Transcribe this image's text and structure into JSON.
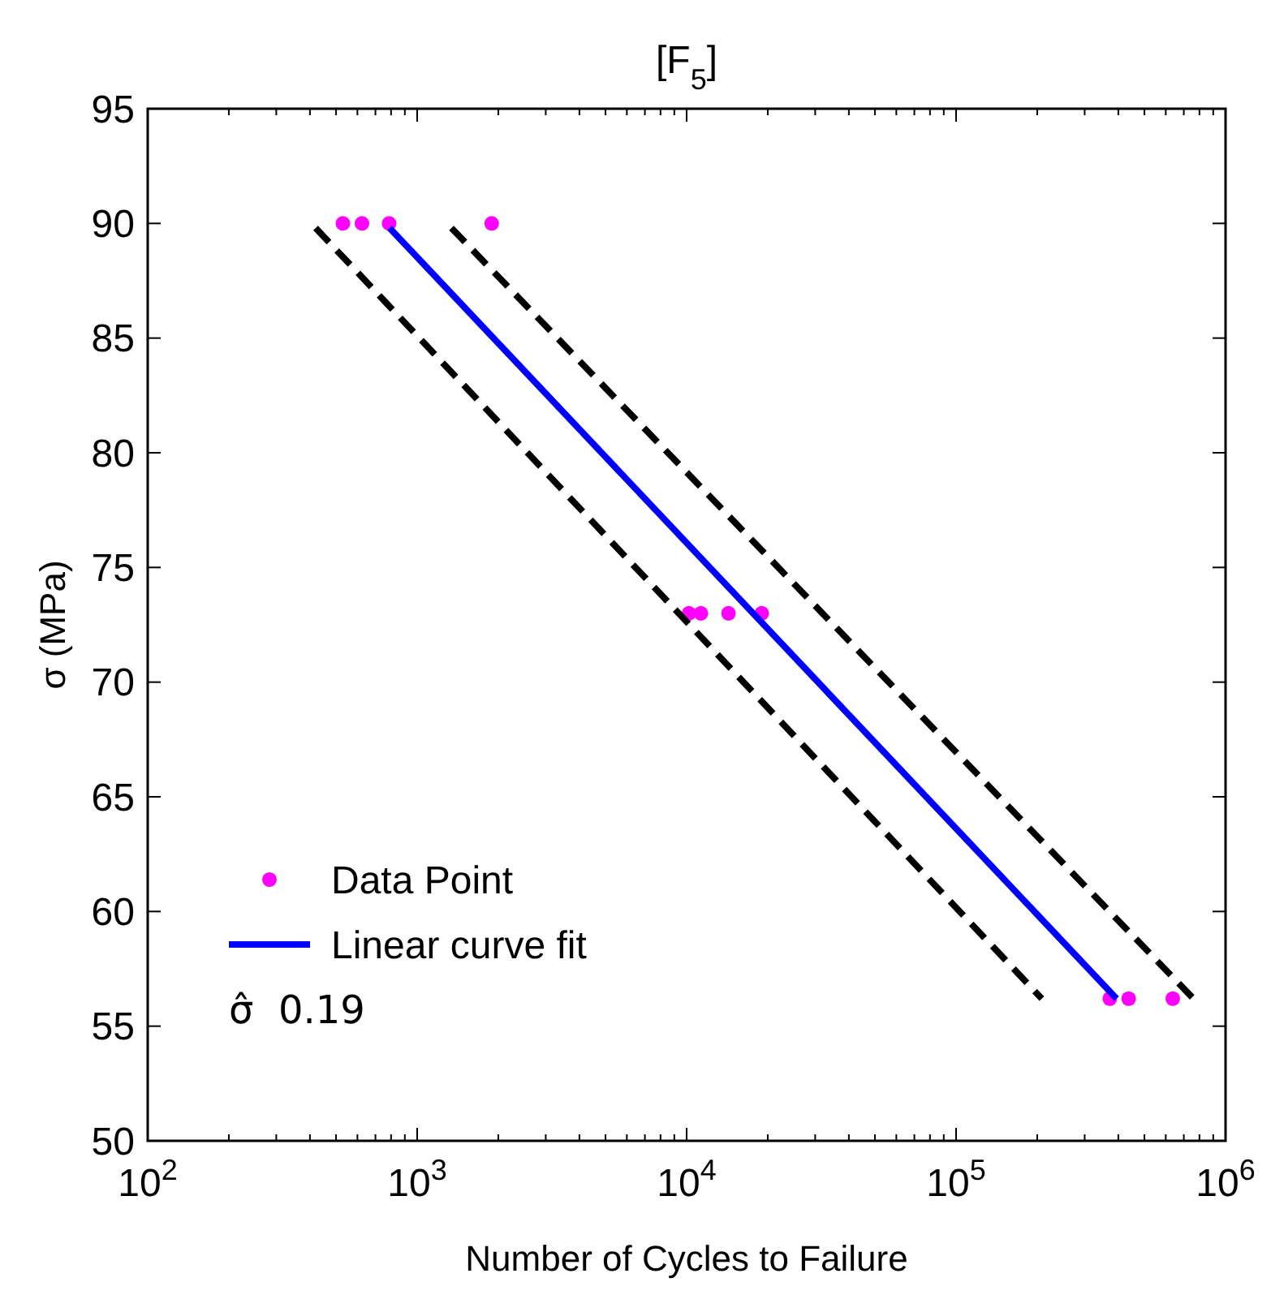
{
  "chart_data": {
    "type": "scatter",
    "title": "[F$_{5}$]",
    "xlabel": "Number of Cycles to Failure",
    "ylabel": "σ (MPa)",
    "log": "x",
    "xlim": [
      100,
      1000000
    ],
    "xticks": [
      {
        "value": 100,
        "label": "10$^{2}$"
      },
      {
        "value": 1000,
        "label": "10$^{3}$"
      },
      {
        "value": 10000,
        "label": "10$^{4}$"
      },
      {
        "value": 100000,
        "label": "10$^{5}$"
      },
      {
        "value": 1000000,
        "label": "10$^{6}$"
      }
    ],
    "ylim": [
      50,
      95
    ],
    "yticks": [
      50,
      55,
      60,
      65,
      70,
      75,
      80,
      85,
      90,
      95
    ],
    "grid": false,
    "legend": "bottom left",
    "annotations": [
      "σ̂  0.19"
    ],
    "series": [
      {
        "name": "Data Point",
        "color": "#ff00ff",
        "marker": "circle",
        "x": [
          530,
          624,
          787,
          1890,
          10200,
          11300,
          14300,
          19000,
          372000,
          437000,
          637000
        ],
        "values": [
          90,
          90,
          90,
          90,
          73,
          73,
          73,
          73,
          56.2,
          56.2,
          56.2
        ]
      },
      {
        "name": "Linear curve fit",
        "type": "line",
        "color": "#0000ff",
        "line_style": "solid",
        "marker": "none",
        "x": [
          790,
          394000
        ],
        "values": [
          89.8,
          56.2
        ]
      },
      {
        "type": "line",
        "color": "#000000",
        "line_style": "dashed",
        "marker": "none",
        "x": [
          420,
          208000
        ],
        "values": [
          89.8,
          56.2
        ]
      },
      {
        "type": "line",
        "color": "#000000",
        "line_style": "dashed",
        "marker": "none",
        "x": [
          1340,
          760000
        ],
        "values": [
          89.8,
          56.2
        ]
      }
    ]
  }
}
